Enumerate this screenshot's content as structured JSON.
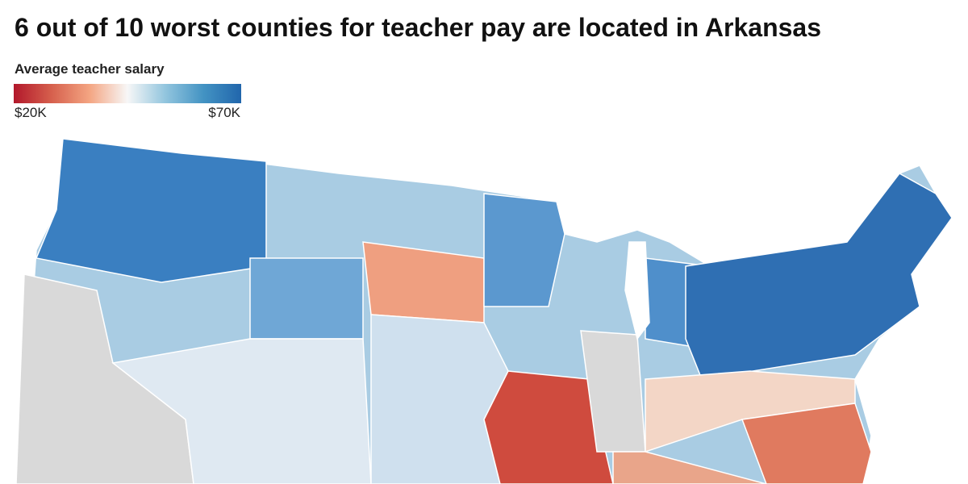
{
  "header": {
    "title": "6 out of 10 worst counties for teacher pay are located in Arkansas"
  },
  "legend": {
    "title": "Average teacher salary",
    "colors": [
      "#b2182b",
      "#d6604d",
      "#f4a582",
      "#f7f7f7",
      "#92c5de",
      "#4393c3",
      "#2166ac"
    ],
    "min": {
      "value": 20000,
      "label": "$20K"
    },
    "max": {
      "value": 70000,
      "label": "$70K"
    }
  }
}
